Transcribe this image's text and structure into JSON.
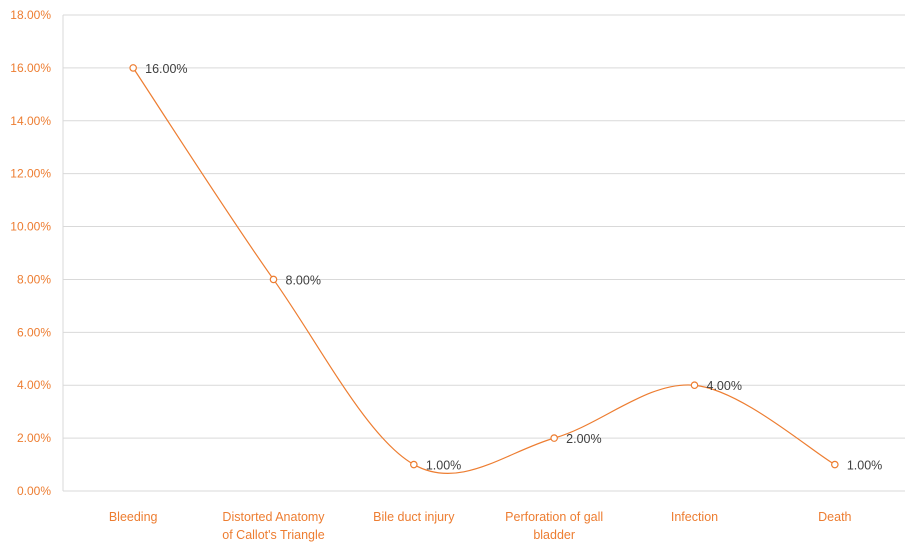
{
  "chart_data": {
    "type": "line",
    "smooth": true,
    "categories": [
      "Bleeding",
      "Distorted Anatomy of Callot's Triangle",
      "Bile duct injury",
      "Perforation of gall bladder",
      "Infection",
      "Death"
    ],
    "category_lines": [
      [
        "Bleeding"
      ],
      [
        "Distorted Anatomy",
        "of Callot's Triangle"
      ],
      [
        "Bile duct injury"
      ],
      [
        "Perforation of gall",
        "bladder"
      ],
      [
        "Infection"
      ],
      [
        "Death"
      ]
    ],
    "series": [
      {
        "values": [
          0.16,
          0.08,
          0.01,
          0.02,
          0.04,
          0.01
        ],
        "labels": [
          "16.00%",
          "8.00%",
          "1.00%",
          "2.00%",
          "4.00%",
          "1.00%"
        ]
      }
    ],
    "ylim": [
      0,
      0.18
    ],
    "yticks": [
      0,
      0.02,
      0.04,
      0.06,
      0.08,
      0.1,
      0.12,
      0.14,
      0.16,
      0.18
    ],
    "ytick_labels": [
      "0.00%",
      "2.00%",
      "4.00%",
      "6.00%",
      "8.00%",
      "10.00%",
      "12.00%",
      "14.00%",
      "16.00%",
      "18.00%"
    ],
    "grid": true,
    "legend": "none",
    "colors": {
      "line": "#ED7D31",
      "ticks": "#ED7D31",
      "grid": "#D9D9D9",
      "labels": "#404040"
    }
  }
}
